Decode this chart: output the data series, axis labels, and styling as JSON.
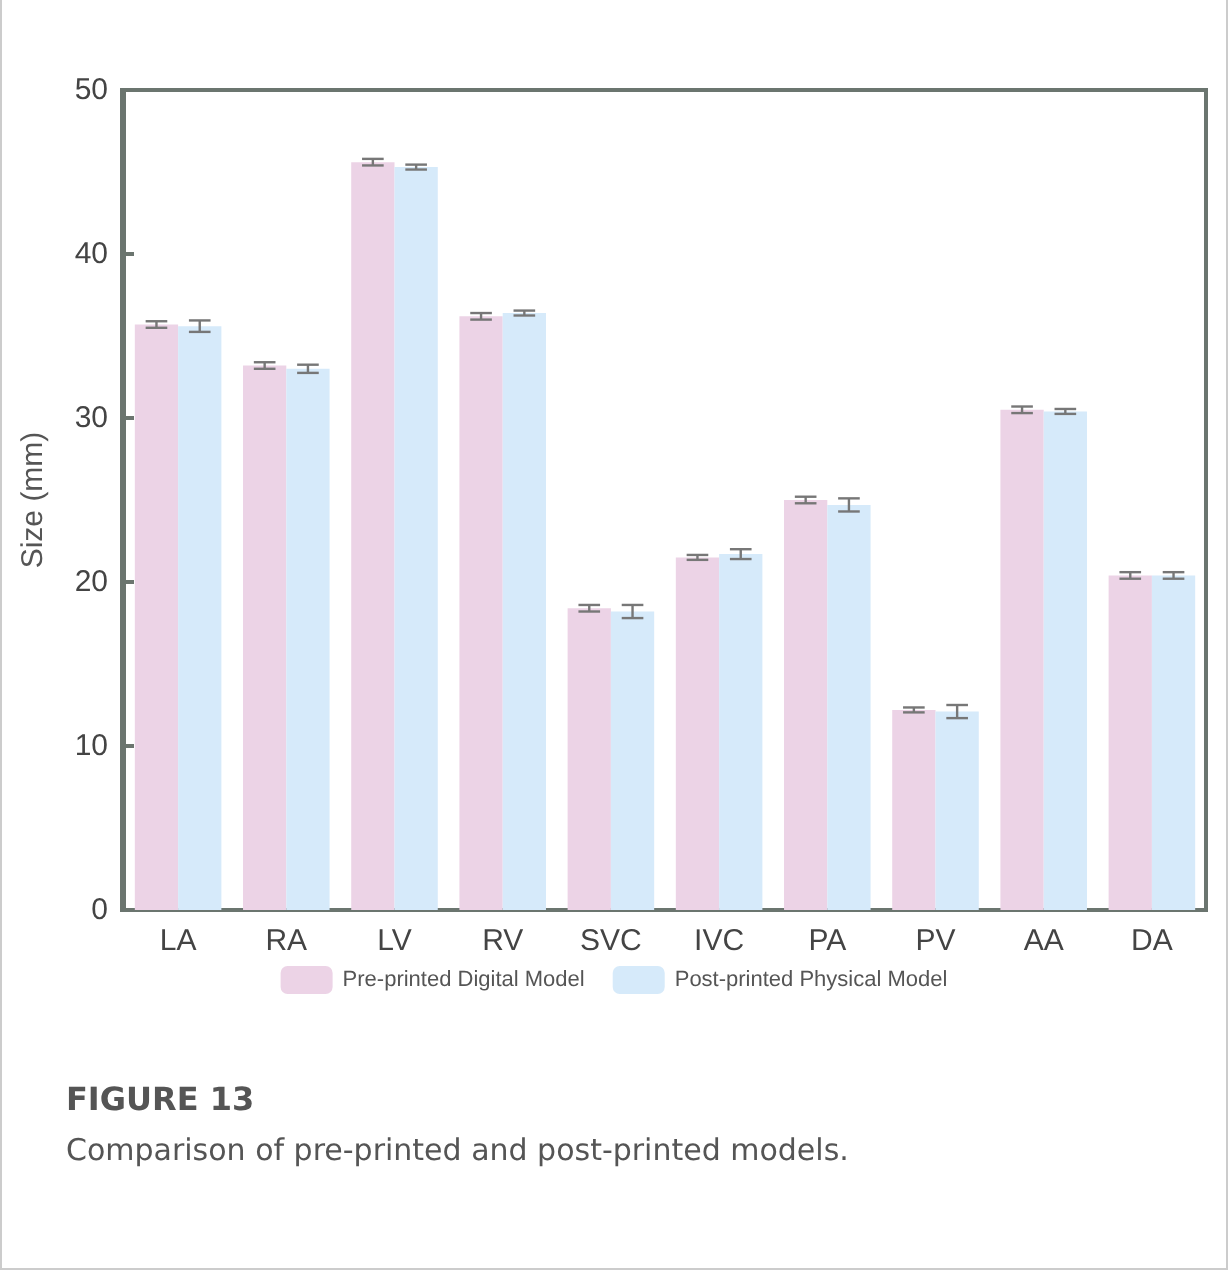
{
  "chart_data": {
    "type": "bar",
    "title": "FIGURE 13",
    "subtitle": "Comparison of pre-printed and post-printed models.",
    "ylabel": "Size (mm)",
    "categories": [
      "LA",
      "RA",
      "LV",
      "RV",
      "SVC",
      "IVC",
      "PA",
      "PV",
      "AA",
      "DA"
    ],
    "series": [
      {
        "name": "Pre-printed Digital Model",
        "color": "#ecd3e6",
        "values": [
          35.7,
          33.2,
          45.6,
          36.2,
          18.4,
          21.5,
          25.0,
          12.2,
          30.5,
          20.4
        ],
        "errors": [
          0.2,
          0.2,
          0.2,
          0.2,
          0.2,
          0.15,
          0.2,
          0.15,
          0.2,
          0.2
        ]
      },
      {
        "name": "Post-printed Physical Model",
        "color": "#d6eafa",
        "values": [
          35.6,
          33.0,
          45.3,
          36.4,
          18.2,
          21.7,
          24.7,
          12.1,
          30.4,
          20.4
        ],
        "errors": [
          0.35,
          0.25,
          0.15,
          0.15,
          0.4,
          0.3,
          0.4,
          0.4,
          0.15,
          0.2
        ]
      }
    ],
    "ylim": [
      0,
      50
    ],
    "yticks": [
      0,
      10,
      20,
      30,
      40,
      50
    ],
    "grid": false,
    "legend": "bottom"
  }
}
